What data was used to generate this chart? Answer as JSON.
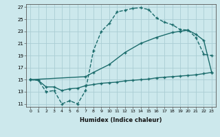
{
  "xlabel": "Humidex (Indice chaleur)",
  "bg_color": "#cce8ec",
  "grid_color": "#aacdd4",
  "line_color": "#1a6b6b",
  "xlim": [
    -0.5,
    23.5
  ],
  "ylim": [
    10.5,
    27.5
  ],
  "xticks": [
    0,
    1,
    2,
    3,
    4,
    5,
    6,
    7,
    8,
    9,
    10,
    11,
    12,
    13,
    14,
    15,
    16,
    17,
    18,
    19,
    20,
    21,
    22,
    23
  ],
  "yticks": [
    11,
    13,
    15,
    17,
    19,
    21,
    23,
    25,
    27
  ],
  "line1_x": [
    0,
    1,
    2,
    3,
    4,
    5,
    6,
    7,
    8,
    9,
    10,
    11,
    12,
    13,
    14,
    15,
    16,
    17,
    18,
    19,
    20,
    21,
    22,
    23
  ],
  "line1_y": [
    15.0,
    14.9,
    13.0,
    13.2,
    11.0,
    11.5,
    11.0,
    13.2,
    19.8,
    23.0,
    24.3,
    26.2,
    26.5,
    26.8,
    26.9,
    26.6,
    25.2,
    24.5,
    24.1,
    23.3,
    23.2,
    22.0,
    19.2,
    19.0
  ],
  "line2_x": [
    0,
    7,
    8,
    10,
    12,
    14,
    16,
    18,
    19,
    20,
    21,
    22,
    23
  ],
  "line2_y": [
    15.0,
    15.5,
    16.2,
    17.5,
    19.5,
    21.0,
    22.0,
    22.8,
    23.0,
    23.2,
    22.5,
    21.5,
    16.2
  ],
  "line3_x": [
    0,
    1,
    2,
    3,
    4,
    5,
    6,
    7,
    8,
    9,
    10,
    11,
    12,
    13,
    14,
    15,
    16,
    17,
    18,
    19,
    20,
    21,
    22,
    23
  ],
  "line3_y": [
    15.0,
    14.9,
    13.8,
    13.8,
    13.2,
    13.5,
    13.6,
    14.0,
    14.2,
    14.4,
    14.5,
    14.6,
    14.8,
    14.9,
    15.0,
    15.1,
    15.3,
    15.4,
    15.5,
    15.6,
    15.7,
    15.8,
    16.0,
    16.2
  ]
}
